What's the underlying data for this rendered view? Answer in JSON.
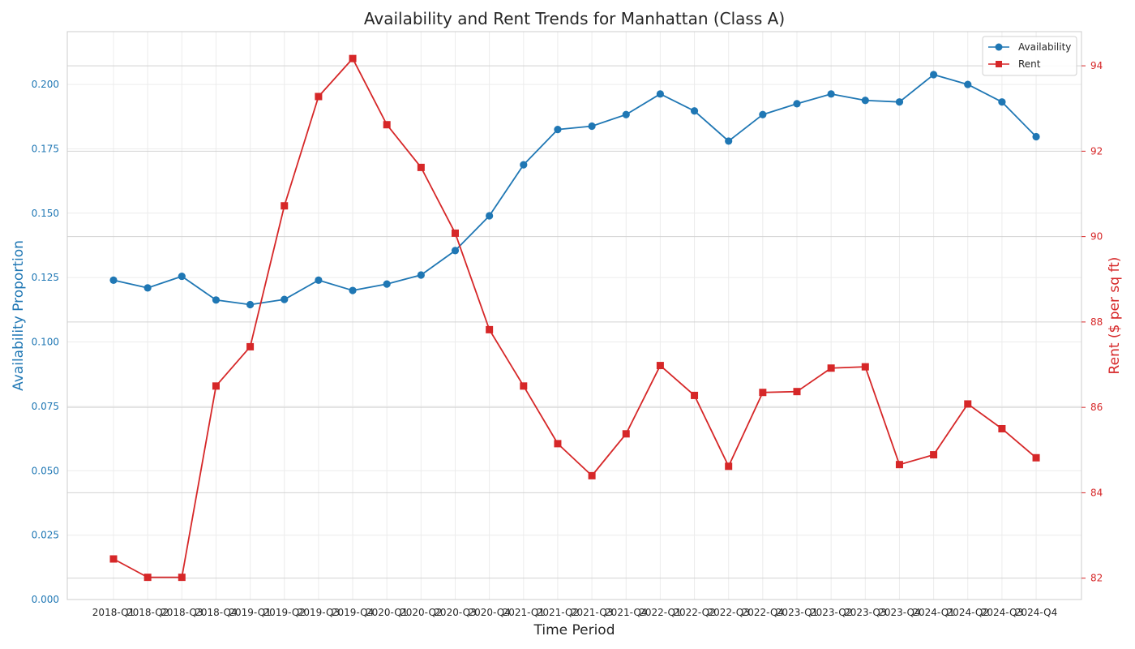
{
  "chart_data": {
    "type": "line",
    "title": "Availability and Rent Trends for Manhattan (Class A)",
    "xlabel": "Time Period",
    "ylabel_left": "Availability Proportion",
    "ylabel_right": "Rent ($ per sq ft)",
    "categories": [
      "2018-Q1",
      "2018-Q2",
      "2018-Q3",
      "2018-Q4",
      "2019-Q1",
      "2019-Q2",
      "2019-Q3",
      "2019-Q4",
      "2020-Q1",
      "2020-Q2",
      "2020-Q3",
      "2020-Q4",
      "2021-Q1",
      "2021-Q2",
      "2021-Q3",
      "2021-Q4",
      "2022-Q1",
      "2022-Q2",
      "2022-Q3",
      "2022-Q4",
      "2023-Q1",
      "2023-Q2",
      "2023-Q3",
      "2023-Q4",
      "2024-Q1",
      "2024-Q2",
      "2024-Q3",
      "2024-Q4"
    ],
    "ylim_left": [
      0,
      0.2205
    ],
    "ylim_right": [
      81.5,
      94.8
    ],
    "yticks_left": [
      "0.000",
      "0.025",
      "0.050",
      "0.075",
      "0.100",
      "0.125",
      "0.150",
      "0.175",
      "0.200"
    ],
    "yticks_right": [
      "82",
      "84",
      "86",
      "88",
      "90",
      "92",
      "94"
    ],
    "grid": true,
    "legend_position": "top-right",
    "series": [
      {
        "name": "Availability",
        "axis": "left",
        "marker": "circle",
        "color": "#1f77b4",
        "values": [
          0.124,
          0.121,
          0.1255,
          0.1163,
          0.1145,
          0.1165,
          0.124,
          0.12,
          0.1225,
          0.126,
          0.1355,
          0.149,
          0.1688,
          0.1825,
          0.1838,
          0.1883,
          0.1963,
          0.1897,
          0.178,
          0.1883,
          0.1925,
          0.1963,
          0.1938,
          0.1932,
          0.2038,
          0.2,
          0.1932,
          0.1797
        ]
      },
      {
        "name": "Rent",
        "axis": "right",
        "marker": "square",
        "color": "#d62728",
        "values": [
          82.45,
          82.02,
          82.02,
          86.5,
          87.42,
          90.72,
          93.28,
          94.17,
          92.62,
          91.62,
          90.08,
          87.82,
          86.5,
          85.15,
          84.4,
          85.38,
          86.98,
          86.28,
          84.62,
          86.35,
          86.37,
          86.92,
          86.95,
          84.66,
          84.89,
          86.08,
          85.5,
          84.82
        ]
      }
    ]
  }
}
